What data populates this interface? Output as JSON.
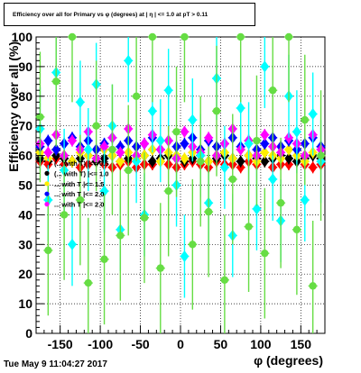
{
  "chart_data": {
    "type": "scatter",
    "title": "Efficiency over all for Primary vs φ (degrees) at | η | <= 1.0 at pT > 0.11",
    "xlabel": "φ (degrees)",
    "ylabel": "Efficiency over all (%)",
    "xlim": [
      -180,
      180
    ],
    "ylim": [
      0,
      100
    ],
    "x_ticks": [
      -150,
      -100,
      -50,
      0,
      50,
      100,
      150
    ],
    "y_ticks": [
      0,
      10,
      20,
      30,
      40,
      50,
      60,
      70,
      80,
      90,
      100
    ],
    "grid": true,
    "legend_position": "left, mid-height",
    "legend_entries": [
      "(... with T) |<= 0.5",
      "(... with T) |<= 1.0",
      "... with T |<= 1.5",
      "... with T |<= 2.0",
      "... with T |<= 2.0"
    ],
    "series": [
      {
        "color": "#ff0000",
        "marker": "diamond",
        "x": [
          -175,
          -165,
          -155,
          -145,
          -135,
          -125,
          -115,
          -105,
          -95,
          -85,
          -75,
          -65,
          -55,
          -45,
          -35,
          -25,
          -15,
          -5,
          5,
          15,
          25,
          35,
          45,
          55,
          65,
          75,
          85,
          95,
          105,
          115,
          125,
          135,
          145,
          155,
          165,
          175
        ],
        "y": [
          58,
          57,
          59,
          57,
          58,
          56,
          57,
          58,
          57,
          56,
          57,
          58,
          56,
          57,
          57,
          58,
          57,
          56,
          57,
          58,
          57,
          56,
          58,
          57,
          57,
          56,
          58,
          57,
          58,
          56,
          57,
          57,
          58,
          57,
          56,
          57
        ]
      },
      {
        "color": "#000000",
        "marker": "diamond",
        "x": [
          -175,
          -165,
          -155,
          -145,
          -135,
          -125,
          -115,
          -105,
          -95,
          -85,
          -75,
          -65,
          -55,
          -45,
          -35,
          -25,
          -15,
          -5,
          5,
          15,
          25,
          35,
          45,
          55,
          65,
          75,
          85,
          95,
          105,
          115,
          125,
          135,
          145,
          155,
          165,
          175
        ],
        "y": [
          59,
          58,
          60,
          59,
          58,
          59,
          60,
          58,
          59,
          60,
          58,
          59,
          59,
          60,
          58,
          59,
          60,
          59,
          58,
          59,
          60,
          58,
          59,
          60,
          59,
          58,
          60,
          59,
          58,
          59,
          60,
          59,
          58,
          59,
          60,
          59
        ]
      },
      {
        "color": "#ffee00",
        "marker": "diamond",
        "x": [
          -175,
          -165,
          -155,
          -145,
          -135,
          -125,
          -115,
          -105,
          -95,
          -85,
          -75,
          -65,
          -55,
          -45,
          -35,
          -25,
          -15,
          -5,
          5,
          15,
          25,
          35,
          45,
          55,
          65,
          75,
          85,
          95,
          105,
          115,
          125,
          135,
          145,
          155,
          165,
          175
        ],
        "y": [
          61,
          59,
          62,
          60,
          58,
          61,
          60,
          59,
          62,
          60,
          58,
          61,
          59,
          60,
          62,
          58,
          61,
          60,
          59,
          61,
          62,
          58,
          60,
          61,
          59,
          62,
          60,
          58,
          61,
          60,
          59,
          62,
          60,
          58,
          61,
          60
        ]
      },
      {
        "color": "#0000ff",
        "marker": "diamond",
        "x": [
          -175,
          -165,
          -155,
          -145,
          -135,
          -125,
          -115,
          -105,
          -95,
          -85,
          -75,
          -65,
          -55,
          -45,
          -35,
          -25,
          -15,
          -5,
          5,
          15,
          25,
          35,
          45,
          55,
          65,
          75,
          85,
          95,
          105,
          115,
          125,
          135,
          145,
          155,
          165,
          175
        ],
        "y": [
          63,
          65,
          62,
          64,
          66,
          63,
          65,
          62,
          64,
          66,
          63,
          65,
          63,
          64,
          66,
          62,
          65,
          63,
          64,
          66,
          62,
          65,
          63,
          64,
          66,
          63,
          65,
          62,
          64,
          66,
          63,
          65,
          62,
          64,
          66,
          63
        ]
      },
      {
        "color": "#ff00ff",
        "marker": "diamond",
        "x": [
          -175,
          -165,
          -155,
          -145,
          -135,
          -125,
          -115,
          -105,
          -95,
          -85,
          -75,
          -65,
          -55,
          -45,
          -35,
          -25,
          -15,
          -5,
          5,
          15,
          25,
          35,
          45,
          55,
          65,
          75,
          85,
          95,
          105,
          115,
          125,
          135,
          145,
          155,
          165,
          175
        ],
        "y": [
          64,
          61,
          67,
          60,
          65,
          62,
          68,
          59,
          63,
          66,
          61,
          69,
          60,
          64,
          67,
          62,
          65,
          59,
          68,
          63,
          61,
          66,
          60,
          64,
          69,
          62,
          65,
          60,
          67,
          63,
          61,
          66,
          64,
          60,
          67,
          62
        ]
      },
      {
        "color": "#00ffff",
        "marker": "diamond",
        "x": [
          -175,
          -165,
          -155,
          -145,
          -135,
          -125,
          -115,
          -105,
          -95,
          -85,
          -75,
          -65,
          -55,
          -45,
          -35,
          -25,
          -15,
          -5,
          5,
          15,
          25,
          35,
          45,
          55,
          65,
          75,
          85,
          95,
          105,
          115,
          125,
          135,
          145,
          155,
          165,
          175
        ],
        "y": [
          69,
          45,
          88,
          55,
          30,
          78,
          62,
          84,
          48,
          70,
          35,
          92,
          58,
          40,
          75,
          65,
          82,
          50,
          26,
          72,
          60,
          44,
          86,
          56,
          33,
          76,
          64,
          42,
          90,
          52,
          38,
          80,
          68,
          45,
          74,
          58
        ]
      },
      {
        "color": "#66dd44",
        "marker": "circle",
        "x": [
          -175,
          -165,
          -155,
          -145,
          -135,
          -125,
          -115,
          -105,
          -95,
          -85,
          -75,
          -65,
          -55,
          -45,
          -35,
          -25,
          -15,
          -5,
          5,
          15,
          25,
          35,
          45,
          55,
          65,
          75,
          85,
          95,
          105,
          115,
          125,
          135,
          145,
          155,
          165,
          175
        ],
        "y": [
          73,
          28,
          85,
          40,
          100,
          45,
          17,
          70,
          25,
          62,
          33,
          55,
          80,
          39,
          100,
          22,
          48,
          68,
          100,
          30,
          58,
          41,
          75,
          18,
          52,
          100,
          36,
          65,
          27,
          82,
          44,
          100,
          35,
          72,
          16,
          60
        ]
      }
    ]
  },
  "timestamp": "Tue May  9 11:04:27 2017"
}
